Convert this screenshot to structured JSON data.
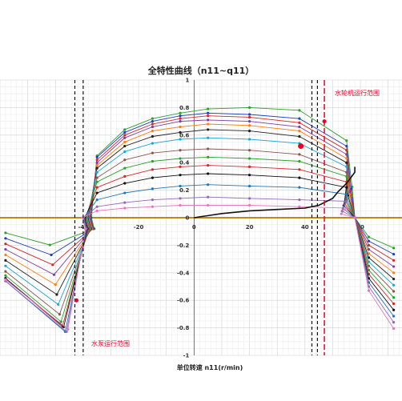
{
  "chart_data": {
    "type": "line",
    "title": "全特性曲线（n11~q11）",
    "xlabel": "单位转速 n11(r/min)",
    "ylabel": "",
    "xlim": [
      -70,
      75
    ],
    "ylim": [
      -1,
      1
    ],
    "x_ticks": [
      -40,
      -20,
      0,
      20,
      40,
      60
    ],
    "y_ticks": [
      1,
      0.8,
      0.6,
      0.4,
      0.2,
      0,
      -0.2,
      -0.4,
      -0.6,
      -0.8,
      -1
    ],
    "x_tick_labels": [
      "-40",
      "-20",
      "0",
      "20",
      "40",
      "60"
    ],
    "y_tick_labels": [
      "1",
      "0.8",
      "0.6",
      "0.4",
      "0.2",
      "0",
      "-0.2",
      "-0.4",
      "-0.6",
      "-0.8",
      "-1"
    ],
    "grid": true,
    "annotations": [
      {
        "text": "水轮机运行范围",
        "color": "#e8002a"
      },
      {
        "text": "水泵运行范围",
        "color": "#e8002a"
      }
    ],
    "range_lines": {
      "turbine_low": 42.5,
      "turbine_high": 44.5,
      "turbine_mark": 47.0,
      "pump_low": -43.0,
      "pump_high": -40.0
    },
    "series": [
      {
        "color": "#2ca02c",
        "y": [
          0.12,
          0.45,
          0.64,
          0.72,
          0.76,
          0.79,
          0.8,
          0.78,
          0.56
        ],
        "y_left": -0.22
      },
      {
        "color": "#1f3fbf",
        "y": [
          0.11,
          0.44,
          0.62,
          0.7,
          0.74,
          0.76,
          0.75,
          0.72,
          0.52
        ],
        "y_left": -0.3
      },
      {
        "color": "#d62728",
        "y": [
          0.1,
          0.42,
          0.6,
          0.68,
          0.72,
          0.74,
          0.73,
          0.69,
          0.49
        ],
        "y_left": -0.38
      },
      {
        "color": "#7b3fa0",
        "y": [
          0.1,
          0.4,
          0.58,
          0.66,
          0.7,
          0.71,
          0.7,
          0.66,
          0.46
        ],
        "y_left": -0.46
      },
      {
        "color": "#ff7f0e",
        "y": [
          0.09,
          0.38,
          0.55,
          0.63,
          0.66,
          0.68,
          0.67,
          0.63,
          0.43
        ],
        "y_left": -0.54
      },
      {
        "color": "#222222",
        "y": [
          0.09,
          0.36,
          0.52,
          0.59,
          0.62,
          0.64,
          0.63,
          0.59,
          0.4
        ],
        "y_left": -0.62
      },
      {
        "color": "#1fa6d6",
        "y": [
          0.08,
          0.33,
          0.48,
          0.54,
          0.57,
          0.58,
          0.57,
          0.54,
          0.37
        ],
        "y_left": -0.7
      },
      {
        "color": "#8c564b",
        "y": [
          0.07,
          0.29,
          0.42,
          0.47,
          0.49,
          0.5,
          0.49,
          0.46,
          0.33
        ],
        "y_left": -0.78
      },
      {
        "color": "#2ca02c",
        "y": [
          0.07,
          0.26,
          0.36,
          0.41,
          0.43,
          0.44,
          0.43,
          0.41,
          0.3
        ],
        "y_left": -0.84
      },
      {
        "color": "#d62728",
        "y": [
          0.06,
          0.22,
          0.3,
          0.35,
          0.37,
          0.38,
          0.37,
          0.35,
          0.26
        ],
        "y_left": -0.88
      },
      {
        "color": "#111111",
        "y": [
          0.05,
          0.18,
          0.25,
          0.29,
          0.31,
          0.32,
          0.31,
          0.29,
          0.22
        ],
        "y_left": -0.88
      },
      {
        "color": "#1f77b4",
        "y": [
          0.04,
          0.13,
          0.18,
          0.21,
          0.23,
          0.24,
          0.23,
          0.22,
          0.17
        ],
        "y_left": -0.92
      },
      {
        "color": "#9467bd",
        "y": [
          0.03,
          0.08,
          0.11,
          0.13,
          0.14,
          0.15,
          0.14,
          0.13,
          0.12
        ],
        "y_left": -0.92
      },
      {
        "color": "#e377c2",
        "y": [
          0.02,
          0.05,
          0.07,
          0.08,
          0.09,
          0.09,
          0.09,
          0.08,
          0.07
        ],
        "y_left": -0.9
      }
    ],
    "x_upper": [
      -40,
      -35,
      -25,
      -15,
      -5,
      5,
      20,
      38,
      55
    ],
    "black_curve": {
      "x": [
        0,
        10,
        20,
        30,
        40,
        45,
        50,
        52,
        55,
        58,
        58
      ],
      "y": [
        0,
        0.03,
        0.05,
        0.06,
        0.07,
        0.09,
        0.14,
        0.19,
        0.25,
        0.33,
        0.37
      ]
    }
  }
}
